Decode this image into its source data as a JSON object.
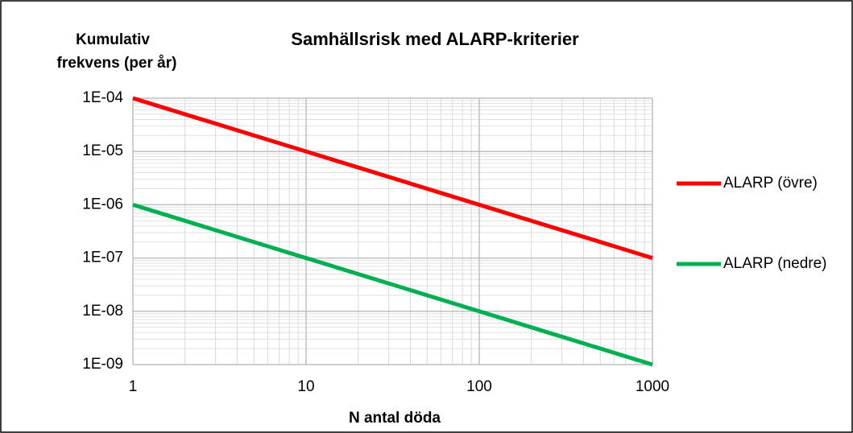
{
  "chart_data": {
    "type": "line",
    "title": "Samhällsrisk med ALARP-kriterier",
    "xlabel": "N antal döda",
    "ylabel": [
      "Kumulativ",
      "frekvens (per år)"
    ],
    "x": [
      1,
      1000
    ],
    "series": [
      {
        "name": "ALARP (övre)",
        "color": "#ff0000",
        "values": [
          0.0001,
          1e-07
        ]
      },
      {
        "name": "ALARP (nedre)",
        "color": "#00b050",
        "values": [
          1e-06,
          1e-09
        ]
      }
    ],
    "xlog": true,
    "ylog": true,
    "xlim": [
      1,
      1000
    ],
    "ylim": [
      1e-09,
      0.0001
    ],
    "xticks": [
      1,
      10,
      100,
      1000
    ],
    "yticks": [
      {
        "value": 1e-09,
        "label": "1E-09"
      },
      {
        "value": 1e-08,
        "label": "1E-08"
      },
      {
        "value": 1e-07,
        "label": "1E-07"
      },
      {
        "value": 1e-06,
        "label": "1E-06"
      },
      {
        "value": 1e-05,
        "label": "1E-05"
      },
      {
        "value": 0.0001,
        "label": "1E-04"
      }
    ],
    "grid": true,
    "minor_grid": true,
    "legend": "right"
  }
}
